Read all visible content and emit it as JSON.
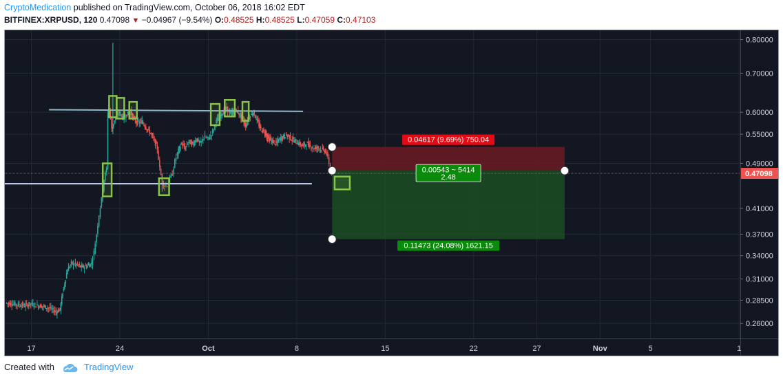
{
  "header": {
    "author": "CryptoMedication",
    "published_text": "published on TradingView.com, October 06, 2018 16:02 EDT",
    "symbol": "BITFINEX:XRPUSD",
    "interval": "120",
    "last": "0.47098",
    "change": "−0.04967 (−9.54%)",
    "o_label": "O:",
    "o_value": "0.48525",
    "h_label": "H:",
    "h_value": "0.48525",
    "l_label": "L:",
    "l_value": "0.47059",
    "c_label": "C:",
    "c_value": "0.47103"
  },
  "footer": {
    "created_with": "Created with",
    "brand": "TradingView"
  },
  "colors": {
    "background": "#131722",
    "up": "#26a69a",
    "down": "#ef5350",
    "last_price_tag": "#ef5350",
    "loss_zone": "#6b1b22",
    "profit_zone": "#1b4d22",
    "profit_label": "#0b8b0b",
    "loss_label": "#e50914",
    "pattern_box": "#8bc34a",
    "trendline_top": "#8fb8c8",
    "trendline_bottom": "#c8d8ff"
  },
  "chart_data": {
    "type": "candlestick",
    "scale": "log",
    "ylim": [
      0.245,
      0.83
    ],
    "y_ticks": [
      "0.80000",
      "0.70000",
      "0.60000",
      "0.55000",
      "0.49000",
      "0.41000",
      "0.37000",
      "0.34000",
      "0.31000",
      "0.28500",
      "0.26000"
    ],
    "x_ticks": [
      {
        "label": "17",
        "day": 17
      },
      {
        "label": "24",
        "day": 24
      },
      {
        "label": "Oct",
        "day": 31
      },
      {
        "label": "8",
        "day": 38
      },
      {
        "label": "15",
        "day": 45
      },
      {
        "label": "22",
        "day": 52
      },
      {
        "label": "27",
        "day": 57
      },
      {
        "label": "Nov",
        "day": 62
      },
      {
        "label": "5",
        "day": 66
      },
      {
        "label": "1",
        "day": 73
      }
    ],
    "x_domain_days": [
      14.9,
      73.1
    ],
    "last_price": 0.47098,
    "last_price_label": "0.47098",
    "price_path": [
      [
        15.0,
        0.282
      ],
      [
        15.5,
        0.281
      ],
      [
        16.0,
        0.28
      ],
      [
        16.5,
        0.279
      ],
      [
        17.0,
        0.281
      ],
      [
        17.5,
        0.279
      ],
      [
        18.0,
        0.278
      ],
      [
        18.5,
        0.276
      ],
      [
        19.0,
        0.272
      ],
      [
        19.3,
        0.275
      ],
      [
        19.6,
        0.3
      ],
      [
        19.9,
        0.322
      ],
      [
        20.2,
        0.33
      ],
      [
        20.6,
        0.328
      ],
      [
        21.0,
        0.325
      ],
      [
        21.4,
        0.326
      ],
      [
        21.8,
        0.33
      ],
      [
        22.0,
        0.345
      ],
      [
        22.2,
        0.37
      ],
      [
        22.4,
        0.4
      ],
      [
        22.6,
        0.425
      ],
      [
        22.8,
        0.46
      ],
      [
        23.0,
        0.48
      ],
      [
        23.1,
        0.6
      ],
      [
        23.2,
        0.61
      ],
      [
        23.4,
        0.56
      ],
      [
        23.7,
        0.59
      ],
      [
        24.0,
        0.6
      ],
      [
        24.3,
        0.585
      ],
      [
        24.6,
        0.595
      ],
      [
        24.9,
        0.6
      ],
      [
        25.2,
        0.58
      ],
      [
        25.5,
        0.575
      ],
      [
        25.8,
        0.578
      ],
      [
        26.1,
        0.565
      ],
      [
        26.4,
        0.555
      ],
      [
        26.7,
        0.54
      ],
      [
        27.0,
        0.52
      ],
      [
        27.2,
        0.48
      ],
      [
        27.4,
        0.455
      ],
      [
        27.6,
        0.448
      ],
      [
        27.8,
        0.45
      ],
      [
        28.0,
        0.462
      ],
      [
        28.2,
        0.47
      ],
      [
        28.4,
        0.495
      ],
      [
        28.6,
        0.51
      ],
      [
        28.9,
        0.53
      ],
      [
        29.2,
        0.52
      ],
      [
        29.5,
        0.535
      ],
      [
        29.8,
        0.528
      ],
      [
        30.1,
        0.54
      ],
      [
        30.4,
        0.53
      ],
      [
        30.7,
        0.545
      ],
      [
        31.0,
        0.54
      ],
      [
        31.3,
        0.55
      ],
      [
        31.6,
        0.575
      ],
      [
        31.9,
        0.59
      ],
      [
        32.2,
        0.6
      ],
      [
        32.5,
        0.61
      ],
      [
        32.8,
        0.595
      ],
      [
        33.1,
        0.605
      ],
      [
        33.4,
        0.6
      ],
      [
        33.7,
        0.585
      ],
      [
        34.0,
        0.57
      ],
      [
        34.3,
        0.59
      ],
      [
        34.6,
        0.6
      ],
      [
        34.9,
        0.58
      ],
      [
        35.2,
        0.56
      ],
      [
        35.5,
        0.555
      ],
      [
        35.8,
        0.54
      ],
      [
        36.1,
        0.535
      ],
      [
        36.4,
        0.53
      ],
      [
        36.7,
        0.54
      ],
      [
        37.0,
        0.545
      ],
      [
        37.3,
        0.548
      ],
      [
        37.6,
        0.54
      ],
      [
        37.9,
        0.535
      ],
      [
        38.2,
        0.53
      ],
      [
        38.5,
        0.525
      ],
      [
        38.8,
        0.53
      ],
      [
        39.1,
        0.525
      ],
      [
        39.4,
        0.52
      ],
      [
        39.7,
        0.522
      ],
      [
        40.0,
        0.518
      ],
      [
        40.3,
        0.515
      ],
      [
        40.5,
        0.5
      ],
      [
        40.7,
        0.48
      ],
      [
        40.8,
        0.471
      ]
    ],
    "spikes": [
      {
        "day": 23.45,
        "high": 0.79,
        "low": 0.55
      },
      {
        "day": 27.35,
        "high": 0.47,
        "low": 0.438
      }
    ],
    "trendlines": [
      {
        "name": "resistance",
        "x1": 18.4,
        "y1": 0.606,
        "x2": 38.5,
        "y2": 0.602
      },
      {
        "name": "support",
        "x1": 14.9,
        "y1": 0.452,
        "x2": 25.1,
        "y2": 0.452,
        "note": "extends to day 39.2"
      }
    ],
    "pattern_boxes": [
      {
        "day1": 22.65,
        "day2": 23.35,
        "low": 0.43,
        "high": 0.49
      },
      {
        "day1": 23.15,
        "day2": 23.75,
        "low": 0.588,
        "high": 0.64
      },
      {
        "day1": 23.75,
        "day2": 24.35,
        "low": 0.585,
        "high": 0.635
      },
      {
        "day1": 24.75,
        "day2": 25.35,
        "low": 0.585,
        "high": 0.625
      },
      {
        "day1": 27.1,
        "day2": 27.9,
        "low": 0.432,
        "high": 0.462
      },
      {
        "day1": 31.2,
        "day2": 31.9,
        "low": 0.57,
        "high": 0.62
      },
      {
        "day1": 32.3,
        "day2": 33.1,
        "low": 0.59,
        "high": 0.63
      },
      {
        "day1": 33.7,
        "day2": 34.2,
        "low": 0.58,
        "high": 0.625
      },
      {
        "day1": 41.0,
        "day2": 42.2,
        "low": 0.442,
        "high": 0.465
      }
    ],
    "position": {
      "side": "long",
      "entry": 0.476,
      "stop": 0.5228,
      "target": 0.363,
      "day_start": 40.8,
      "day_end": 59.2,
      "entry_label": "0.00543 ~ 5414",
      "ratio_label": "2.48",
      "stop_label": "0.04617 (9.69%) 750.04",
      "target_label": "0.11473 (24.08%) 1621.15"
    }
  }
}
